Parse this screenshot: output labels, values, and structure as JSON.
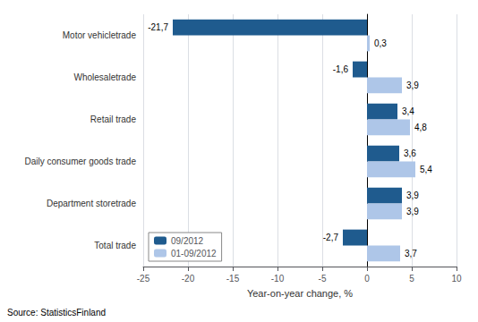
{
  "chart_data": {
    "type": "bar",
    "orientation": "horizontal",
    "categories": [
      "Motor vehicletrade",
      "Wholesaletrade",
      "Retail trade",
      "Daily consumer goods trade",
      "Department storetrade",
      "Total trade"
    ],
    "series": [
      {
        "name": "09/2012",
        "color": "#1f5b8e",
        "values": [
          -21.7,
          -1.6,
          3.4,
          3.6,
          3.9,
          -2.7
        ],
        "value_labels": [
          "-21,7",
          "-1,6",
          "3,4",
          "3,6",
          "3,9",
          "-2,7"
        ]
      },
      {
        "name": "01-09/2012",
        "color": "#aec6e8",
        "values": [
          0.3,
          3.9,
          4.8,
          5.4,
          3.9,
          3.7
        ],
        "value_labels": [
          "0,3",
          "3,9",
          "4,8",
          "5,4",
          "3,9",
          "3,7"
        ]
      }
    ],
    "xlim": [
      -25,
      10
    ],
    "xticks": [
      -25,
      -20,
      -15,
      -10,
      -5,
      0,
      5,
      10
    ],
    "xlabel": "Year-on-year change, %",
    "source": "Source: StatisticsFinland",
    "grid": true,
    "legend": "lower left",
    "data_labels": true
  }
}
